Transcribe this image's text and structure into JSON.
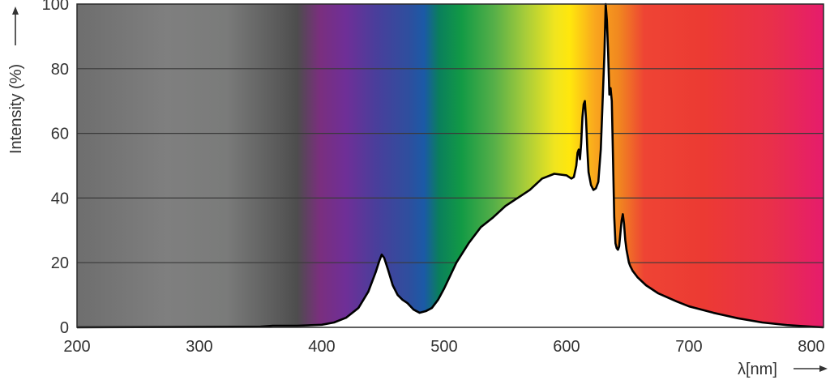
{
  "chart_data": {
    "type": "area",
    "xlabel": "λ[nm]",
    "ylabel": "Intensity (%)",
    "xlim": [
      200,
      810
    ],
    "ylim": [
      0,
      100
    ],
    "x_ticks": [
      200,
      300,
      400,
      500,
      600,
      700,
      800
    ],
    "y_ticks": [
      0,
      20,
      40,
      60,
      80,
      100
    ],
    "grid": "horizontal",
    "background": "visible-light spectrum gradient (grey in UV region, violet→blue→green→yellow→orange→red→magenta)",
    "series": [
      {
        "fill": "#ffffff",
        "stroke": "#000000",
        "x": [
          200,
          350,
          360,
          380,
          400,
          410,
          420,
          430,
          438,
          444,
          447,
          449,
          451,
          454,
          458,
          462,
          466,
          470,
          475,
          480,
          485,
          490,
          495,
          500,
          505,
          510,
          520,
          530,
          540,
          550,
          560,
          570,
          580,
          590,
          600,
          604,
          606,
          608,
          609,
          610,
          611,
          612,
          613,
          614,
          615,
          616,
          617,
          618,
          620,
          622,
          624,
          626,
          628,
          630,
          631,
          632,
          633,
          634,
          635,
          636,
          637,
          638,
          639,
          640,
          641,
          642,
          643,
          644,
          645,
          646,
          647,
          648,
          649,
          650,
          651,
          652,
          654,
          658,
          665,
          675,
          690,
          700,
          720,
          740,
          760,
          780,
          800,
          810
        ],
        "y": [
          0,
          0.2,
          0.5,
          0.5,
          0.8,
          1.5,
          3,
          6,
          11,
          17,
          20.5,
          22.5,
          21.5,
          18,
          13,
          10,
          8.5,
          7.5,
          5.5,
          4.5,
          5,
          6,
          8.5,
          12,
          16,
          20,
          26,
          31,
          34,
          37.5,
          40,
          42.5,
          46,
          47.5,
          47,
          46,
          46.5,
          50,
          54,
          55,
          52,
          57,
          65,
          69,
          70,
          64,
          55,
          48,
          44,
          42.5,
          43,
          45,
          55,
          75,
          85,
          100,
          95,
          85,
          72,
          74,
          70,
          52,
          34,
          26,
          24.5,
          24,
          25,
          29,
          33,
          35,
          32,
          27,
          24,
          22,
          20,
          19,
          17.5,
          15.5,
          13,
          10.5,
          8,
          6.5,
          4.5,
          2.8,
          1.5,
          0.7,
          0.2,
          0
        ]
      }
    ]
  }
}
